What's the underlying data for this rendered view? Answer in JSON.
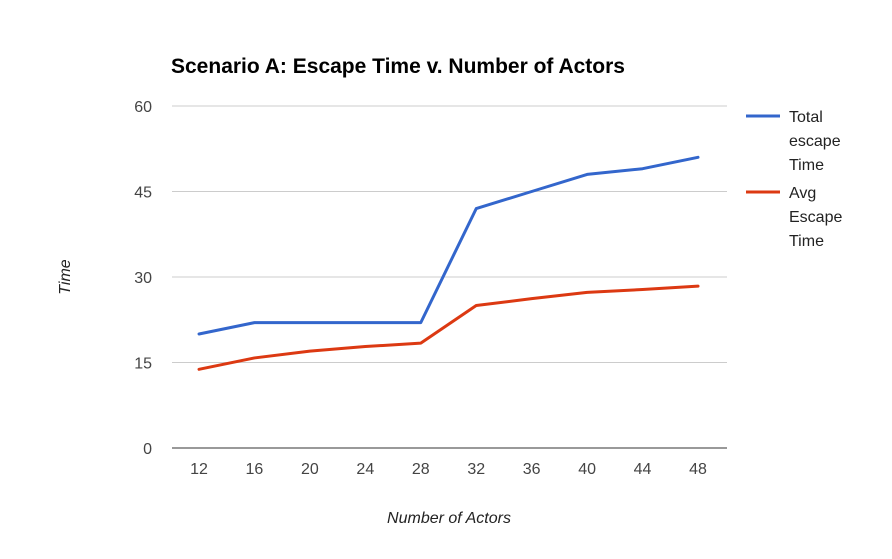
{
  "chart_data": {
    "type": "line",
    "title": "Scenario A: Escape Time v. Number of Actors",
    "xlabel": "Number of Actors",
    "ylabel": "Time",
    "categories": [
      "12",
      "16",
      "20",
      "24",
      "28",
      "32",
      "36",
      "40",
      "44",
      "48"
    ],
    "y_ticks": [
      "0",
      "15",
      "30",
      "45",
      "60"
    ],
    "ylim": [
      0,
      60
    ],
    "grid": true,
    "legend_position": "right",
    "series": [
      {
        "name": "Total escape Time",
        "legend_lines": [
          "Total",
          "escape",
          "Time"
        ],
        "color": "#3366cc",
        "values": [
          20,
          22,
          22,
          22,
          22,
          42,
          45,
          48,
          49,
          51
        ]
      },
      {
        "name": "Avg Escape Time",
        "legend_lines": [
          "Avg",
          "Escape",
          "Time"
        ],
        "color": "#dc3912",
        "values": [
          13.8,
          15.8,
          17,
          17.8,
          18.4,
          25,
          26.2,
          27.3,
          27.8,
          28.4
        ]
      }
    ]
  }
}
